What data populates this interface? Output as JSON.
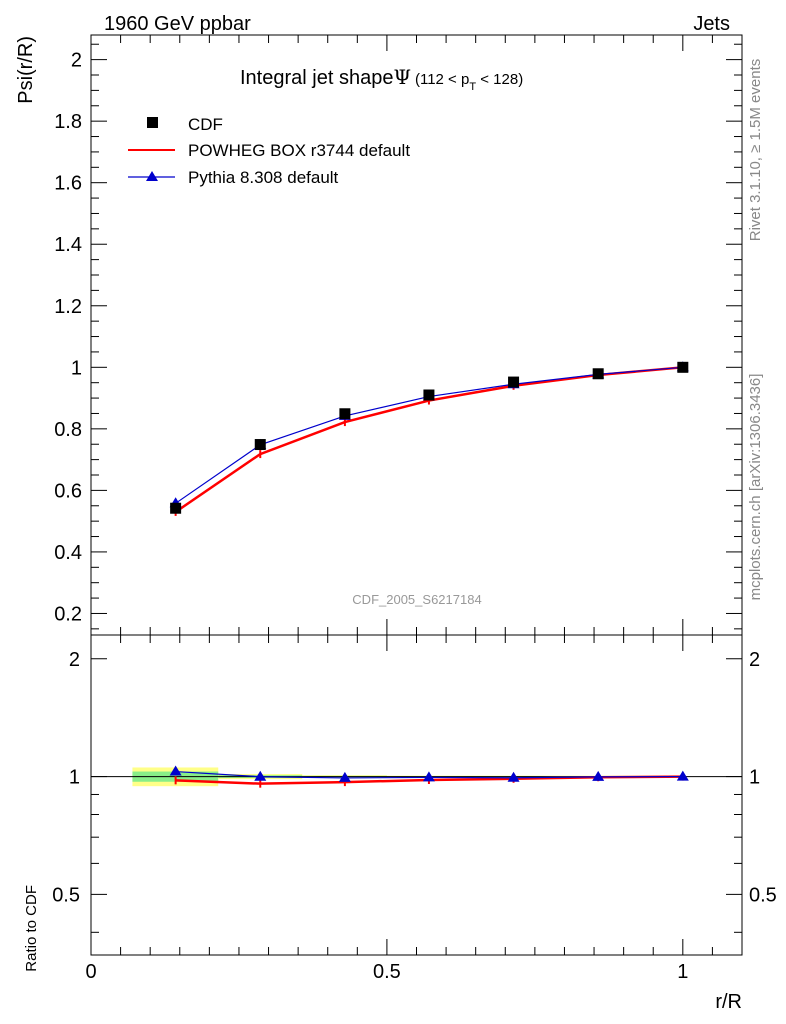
{
  "header": {
    "left": "1960 GeV ppbar",
    "right": "Jets"
  },
  "side_text": {
    "rivet": "Rivet 3.1.10, ≥ 1.5M events",
    "mcplots": "mcplots.cern.ch [arXiv:1306.3436]"
  },
  "chart_data": [
    {
      "type": "line",
      "title_main": "Integral jet shape",
      "title_symbol": "Ψ",
      "title_range_prefix": "(112 < p",
      "title_range_sub": "T",
      "title_range_suffix": " < 128)",
      "ylabel": "Psi(r/R)",
      "xlabel": "r/R",
      "xlim": [
        0,
        1.1
      ],
      "ylim": [
        0.13,
        2.08
      ],
      "y_ticks": [
        "0.2",
        "0.4",
        "0.6",
        "0.8",
        "1",
        "1.2",
        "1.4",
        "1.6",
        "1.8",
        "2"
      ],
      "watermark": "CDF_2005_S6217184",
      "legend_position": "top-left",
      "x": [
        0.143,
        0.286,
        0.429,
        0.571,
        0.714,
        0.857,
        1.0
      ],
      "series": [
        {
          "name": "CDF",
          "style": "markers",
          "color": "#000000",
          "values": [
            0.542,
            0.749,
            0.849,
            0.91,
            0.952,
            0.979,
            1.0
          ]
        },
        {
          "name": "POWHEG BOX r3744 default",
          "style": "line",
          "color": "#ff0000",
          "values": [
            0.53,
            0.718,
            0.822,
            0.892,
            0.94,
            0.975,
            1.0
          ]
        },
        {
          "name": "Pythia 8.308 default",
          "style": "line-triangle",
          "color": "#0000cc",
          "values": [
            0.558,
            0.748,
            0.842,
            0.905,
            0.945,
            0.977,
            1.0
          ]
        }
      ]
    },
    {
      "type": "line",
      "ylabel": "Ratio to CDF",
      "xlabel": "r/R",
      "xlim": [
        0,
        1.1
      ],
      "ylim": [
        0.35,
        2.3
      ],
      "y_ticks": [
        "0.5",
        "1",
        "2"
      ],
      "x_ticks": [
        "0",
        "0.5",
        "1"
      ],
      "x": [
        0.143,
        0.286,
        0.429,
        0.571,
        0.714,
        0.857,
        1.0
      ],
      "bands": [
        {
          "x_from": 0.07,
          "x_to": 0.215,
          "yellow": [
            0.945,
            1.055
          ],
          "green": [
            0.97,
            1.03
          ]
        },
        {
          "x_from": 0.215,
          "x_to": 0.357,
          "yellow": [
            0.985,
            1.015
          ],
          "green": [
            0.992,
            1.008
          ]
        },
        {
          "x_from": 0.357,
          "x_to": 0.5,
          "yellow": [
            0.992,
            1.008
          ],
          "green": [
            0.996,
            1.004
          ]
        },
        {
          "x_from": 0.5,
          "x_to": 1.0,
          "yellow": [
            0.995,
            1.005
          ],
          "green": [
            0.998,
            1.002
          ]
        }
      ],
      "series": [
        {
          "name": "POWHEG BOX r3744 default",
          "color": "#ff0000",
          "values": [
            0.978,
            0.959,
            0.968,
            0.98,
            0.987,
            0.996,
            1.0
          ]
        },
        {
          "name": "Pythia 8.308 default",
          "color": "#0000cc",
          "values": [
            1.03,
            0.999,
            0.992,
            0.995,
            0.993,
            0.998,
            1.0
          ]
        }
      ]
    }
  ]
}
